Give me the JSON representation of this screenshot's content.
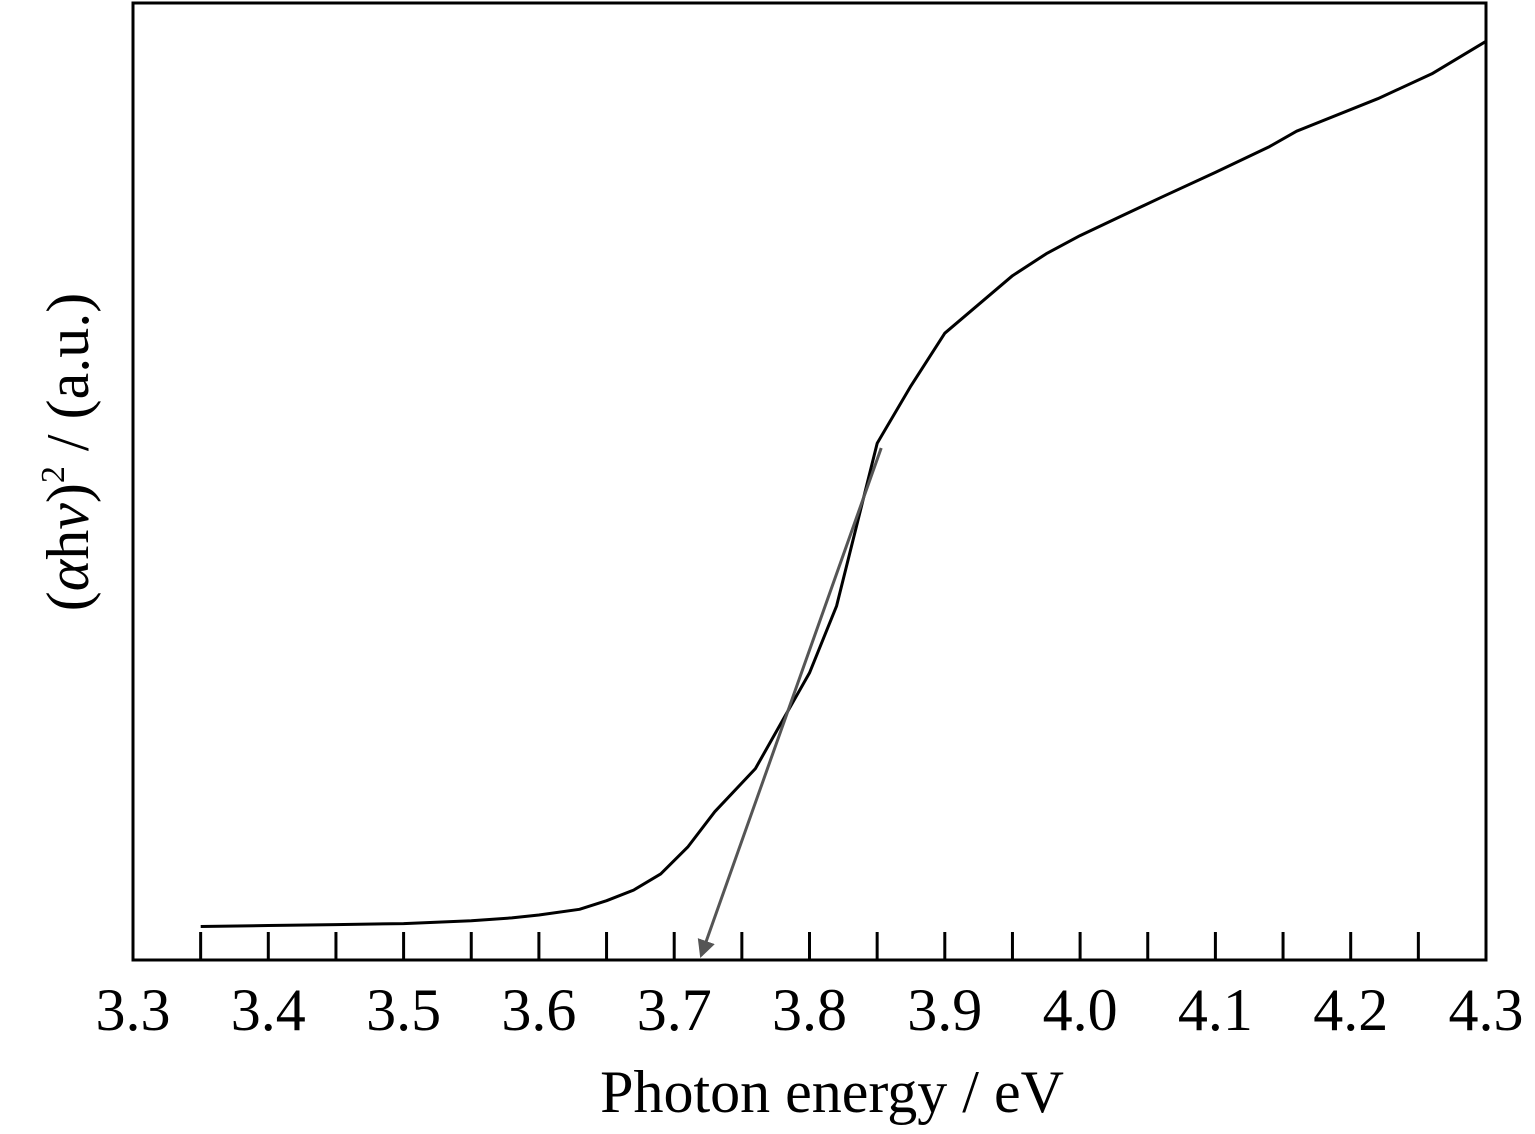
{
  "chart_data": {
    "type": "line",
    "title": "",
    "xlabel": "Photon energy / eV",
    "ylabel": {
      "open": "(",
      "alpha": "α",
      "mid": "h",
      "nu": "v",
      "close": ")",
      "sup": "2",
      "rest": " / (a.u.)"
    },
    "xlim": [
      3.3,
      4.3
    ],
    "ylim": [
      0,
      1
    ],
    "x_ticks": [
      "3.3",
      "3.4",
      "3.5",
      "3.6",
      "3.7",
      "3.8",
      "3.9",
      "4.0",
      "4.1",
      "4.2",
      "4.3"
    ],
    "x_tick_values": [
      3.3,
      3.4,
      3.5,
      3.6,
      3.7,
      3.8,
      3.9,
      4.0,
      4.1,
      4.2,
      4.3
    ],
    "minor_tick_values": [
      3.35,
      3.45,
      3.55,
      3.65,
      3.75,
      3.85,
      3.95,
      4.05,
      4.15,
      4.25
    ],
    "y_ticks": [],
    "grid": false,
    "legend": "none",
    "series": [
      {
        "x": [
          3.35,
          3.4,
          3.45,
          3.5,
          3.55,
          3.58,
          3.6,
          3.63,
          3.65,
          3.67,
          3.69,
          3.71,
          3.73,
          3.76,
          3.78,
          3.8,
          3.82,
          3.85,
          3.875,
          3.9,
          3.95,
          3.975,
          4.0,
          4.03,
          4.06,
          4.1,
          4.14,
          4.16,
          4.22,
          4.26,
          4.3
        ],
        "y": [
          0.035,
          0.036,
          0.037,
          0.038,
          0.041,
          0.044,
          0.047,
          0.053,
          0.062,
          0.073,
          0.09,
          0.118,
          0.155,
          0.2,
          0.25,
          0.3,
          0.37,
          0.54,
          0.6,
          0.655,
          0.715,
          0.738,
          0.757,
          0.777,
          0.797,
          0.823,
          0.85,
          0.866,
          0.9,
          0.926,
          0.96
        ],
        "color": "#000000"
      }
    ],
    "annotations": [
      {
        "type": "tangent-arrow",
        "x_start": 3.853,
        "y_start": 0.535,
        "x_end": 3.72,
        "y_end": 0.005,
        "color": "#555555"
      }
    ]
  }
}
